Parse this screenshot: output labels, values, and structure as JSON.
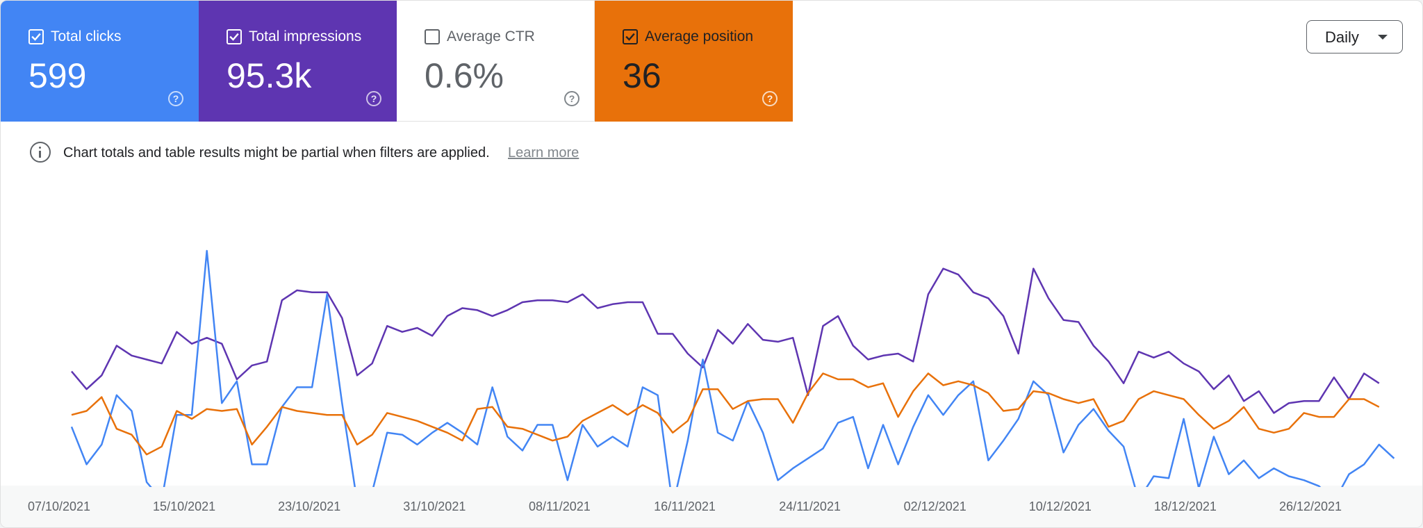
{
  "cards": [
    {
      "id": "clicks",
      "label": "Total clicks",
      "value": "599",
      "checked": true,
      "bg": "#4285f4",
      "theme": "light"
    },
    {
      "id": "impressions",
      "label": "Total impressions",
      "value": "95.3k",
      "checked": true,
      "bg": "#5e35b1",
      "theme": "light"
    },
    {
      "id": "ctr",
      "label": "Average CTR",
      "value": "0.6%",
      "checked": false,
      "bg": "#ffffff",
      "theme": "inactive"
    },
    {
      "id": "position",
      "label": "Average position",
      "value": "36",
      "checked": true,
      "bg": "#e8710a",
      "theme": "dark"
    }
  ],
  "help_glyph": "?",
  "granularity": {
    "label": "Daily",
    "icon": "arrow-drop-down-icon"
  },
  "notice": {
    "text": "Chart totals and table results might be partial when filters are applied.",
    "link": "Learn more",
    "icon": "info-icon"
  },
  "chart_data": {
    "type": "line",
    "x_tick_labels": [
      "07/10/2021",
      "15/10/2021",
      "23/10/2021",
      "31/10/2021",
      "08/11/2021",
      "16/11/2021",
      "24/11/2021",
      "02/12/2021",
      "10/12/2021",
      "18/12/2021",
      "26/12/2021"
    ],
    "x_start": "07/10/2021",
    "grid": false,
    "legend": "none",
    "series": [
      {
        "color": "#5e35b1",
        "values": [
          0.39,
          0.3,
          0.37,
          0.52,
          0.47,
          0.45,
          0.43,
          0.59,
          0.53,
          0.56,
          0.53,
          0.35,
          0.42,
          0.44,
          0.75,
          0.8,
          0.79,
          0.79,
          0.66,
          0.37,
          0.43,
          0.62,
          0.59,
          0.61,
          0.57,
          0.67,
          0.71,
          0.7,
          0.67,
          0.7,
          0.74,
          0.75,
          0.75,
          0.74,
          0.78,
          0.71,
          0.73,
          0.74,
          0.74,
          0.58,
          0.58,
          0.48,
          0.41,
          0.6,
          0.53,
          0.63,
          0.55,
          0.54,
          0.56,
          0.27,
          0.62,
          0.67,
          0.52,
          0.45,
          0.47,
          0.48,
          0.44,
          0.78,
          0.91,
          0.88,
          0.79,
          0.76,
          0.67,
          0.48,
          0.91,
          0.76,
          0.65,
          0.64,
          0.52,
          0.44,
          0.33,
          0.49,
          0.46,
          0.49,
          0.43,
          0.39,
          0.3,
          0.37,
          0.24,
          0.29,
          0.18,
          0.23,
          0.24,
          0.24,
          0.36,
          0.25,
          0.38,
          0.33
        ]
      },
      {
        "color": "#4285f4",
        "values": [
          0.11,
          -0.08,
          0.02,
          0.27,
          0.19,
          -0.17,
          -0.26,
          0.17,
          0.17,
          1.0,
          0.23,
          0.34,
          -0.08,
          -0.08,
          0.21,
          0.31,
          0.31,
          0.78,
          0.23,
          -0.27,
          -0.22,
          0.08,
          0.07,
          0.02,
          0.08,
          0.13,
          0.08,
          0.02,
          0.31,
          0.06,
          -0.01,
          0.12,
          0.12,
          -0.16,
          0.12,
          0.01,
          0.06,
          0.01,
          0.31,
          0.27,
          -0.29,
          0.04,
          0.45,
          0.08,
          0.04,
          0.24,
          0.08,
          -0.16,
          -0.1,
          -0.05,
          0.0,
          0.13,
          0.16,
          -0.1,
          0.12,
          -0.08,
          0.11,
          0.27,
          0.17,
          0.27,
          0.34,
          -0.06,
          0.04,
          0.15,
          0.34,
          0.27,
          -0.02,
          0.12,
          0.2,
          0.09,
          0.01,
          -0.26,
          -0.14,
          -0.15,
          0.15,
          -0.2,
          0.06,
          -0.13,
          -0.06,
          -0.15,
          -0.1,
          -0.14,
          -0.16,
          -0.19,
          -0.27,
          -0.13,
          -0.08,
          0.02,
          -0.05
        ]
      },
      {
        "color": "#e8710a",
        "values": [
          0.17,
          0.19,
          0.26,
          0.1,
          0.07,
          -0.03,
          0.01,
          0.19,
          0.15,
          0.2,
          0.19,
          0.2,
          0.02,
          0.11,
          0.21,
          0.19,
          0.18,
          0.17,
          0.17,
          0.02,
          0.07,
          0.18,
          0.16,
          0.14,
          0.11,
          0.08,
          0.04,
          0.2,
          0.21,
          0.11,
          0.1,
          0.07,
          0.04,
          0.06,
          0.14,
          0.18,
          0.22,
          0.17,
          0.22,
          0.18,
          0.08,
          0.14,
          0.3,
          0.3,
          0.2,
          0.24,
          0.25,
          0.25,
          0.13,
          0.28,
          0.38,
          0.35,
          0.35,
          0.31,
          0.33,
          0.16,
          0.29,
          0.38,
          0.32,
          0.34,
          0.32,
          0.28,
          0.19,
          0.2,
          0.29,
          0.28,
          0.25,
          0.23,
          0.25,
          0.11,
          0.14,
          0.25,
          0.29,
          0.27,
          0.25,
          0.17,
          0.1,
          0.14,
          0.21,
          0.1,
          0.08,
          0.1,
          0.18,
          0.16,
          0.16,
          0.25,
          0.25,
          0.21
        ]
      }
    ]
  }
}
